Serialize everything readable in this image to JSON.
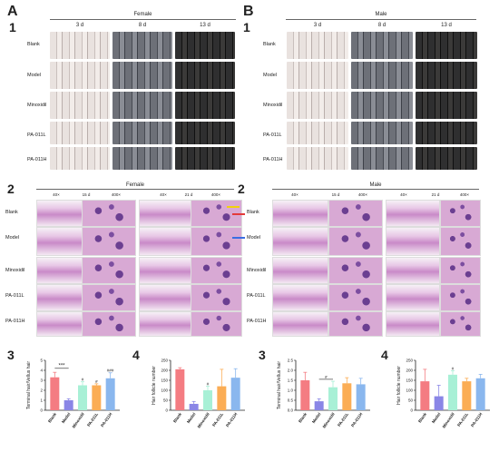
{
  "panels": {
    "A": "A",
    "B": "B",
    "a1": "1",
    "a2": "2",
    "a3": "3",
    "a4": "4",
    "b1": "1",
    "b2": "2",
    "b3": "3",
    "b4": "4"
  },
  "photos": {
    "female_title": "Female",
    "male_title": "Male",
    "days": [
      "3 d",
      "8 d",
      "13 d"
    ],
    "groups": [
      "Blank",
      "Model",
      "Minoxidil",
      "PA-011L",
      "PA-011H"
    ]
  },
  "histology": {
    "female_title": "Female",
    "male_title": "Male",
    "headers": [
      "40×",
      "15 d",
      "400×",
      "40×",
      "21 d",
      "400×"
    ],
    "groups": [
      "Blank",
      "Model",
      "Minoxidil",
      "PA-011L",
      "PA-011H"
    ]
  },
  "colors": {
    "Blank": "#f47c82",
    "Model": "#8a86e6",
    "Minoxidil": "#a8f0d6",
    "PA-011L": "#fbad55",
    "PA-011H": "#8ab7ee",
    "arrow_yellow": "#f1d20e",
    "arrow_red": "#e33a3a",
    "arrow_blue": "#3a6ee3"
  },
  "chart_data": [
    {
      "type": "bar",
      "panel": "A3",
      "ylabel": "Terminal hair/Vellus hair",
      "categories": [
        "Blank",
        "Model",
        "Minoxidil",
        "PA-011L",
        "PA-011H"
      ],
      "values": [
        3.3,
        1.0,
        2.5,
        2.5,
        3.2
      ],
      "errors": [
        0.5,
        0.15,
        0.35,
        0.15,
        0.55
      ],
      "ylim": [
        0,
        5
      ],
      "yticks": [
        "0",
        "1",
        "2",
        "3",
        "4",
        "5"
      ],
      "annotations": [
        "***",
        "#",
        "#",
        "###"
      ]
    },
    {
      "type": "bar",
      "panel": "A4",
      "ylabel": "Hair follicle number",
      "categories": [
        "Blank",
        "Model",
        "Minoxidil",
        "PA-011L",
        "PA-011H"
      ],
      "values": [
        205,
        32,
        100,
        120,
        163
      ],
      "errors": [
        8,
        12,
        20,
        85,
        45
      ],
      "ylim": [
        0,
        250
      ],
      "yticks": [
        "0",
        "50",
        "100",
        "150",
        "200",
        "250"
      ],
      "annotations": [
        "#"
      ]
    },
    {
      "type": "bar",
      "panel": "B3",
      "ylabel": "Terminal hair/Vellus hair",
      "categories": [
        "Blank",
        "Model",
        "Minoxidil",
        "PA-011L",
        "PA-011H"
      ],
      "values": [
        1.5,
        0.45,
        1.15,
        1.35,
        1.3
      ],
      "errors": [
        0.4,
        0.12,
        0.3,
        0.28,
        0.3
      ],
      "ylim": [
        0,
        2.5
      ],
      "yticks": [
        "0.0",
        "0.5",
        "1.0",
        "1.5",
        "2.0",
        "2.5"
      ],
      "annotations": [
        "#"
      ]
    },
    {
      "type": "bar",
      "panel": "B4",
      "ylabel": "Hair follicle number",
      "categories": [
        "Blank",
        "Model",
        "Minoxidil",
        "PA-011L",
        "PA-011H"
      ],
      "values": [
        145,
        70,
        178,
        145,
        160
      ],
      "errors": [
        60,
        55,
        20,
        15,
        20
      ],
      "ylim": [
        0,
        250
      ],
      "yticks": [
        "0",
        "50",
        "100",
        "150",
        "200",
        "250"
      ],
      "annotations": [
        "#"
      ]
    }
  ]
}
